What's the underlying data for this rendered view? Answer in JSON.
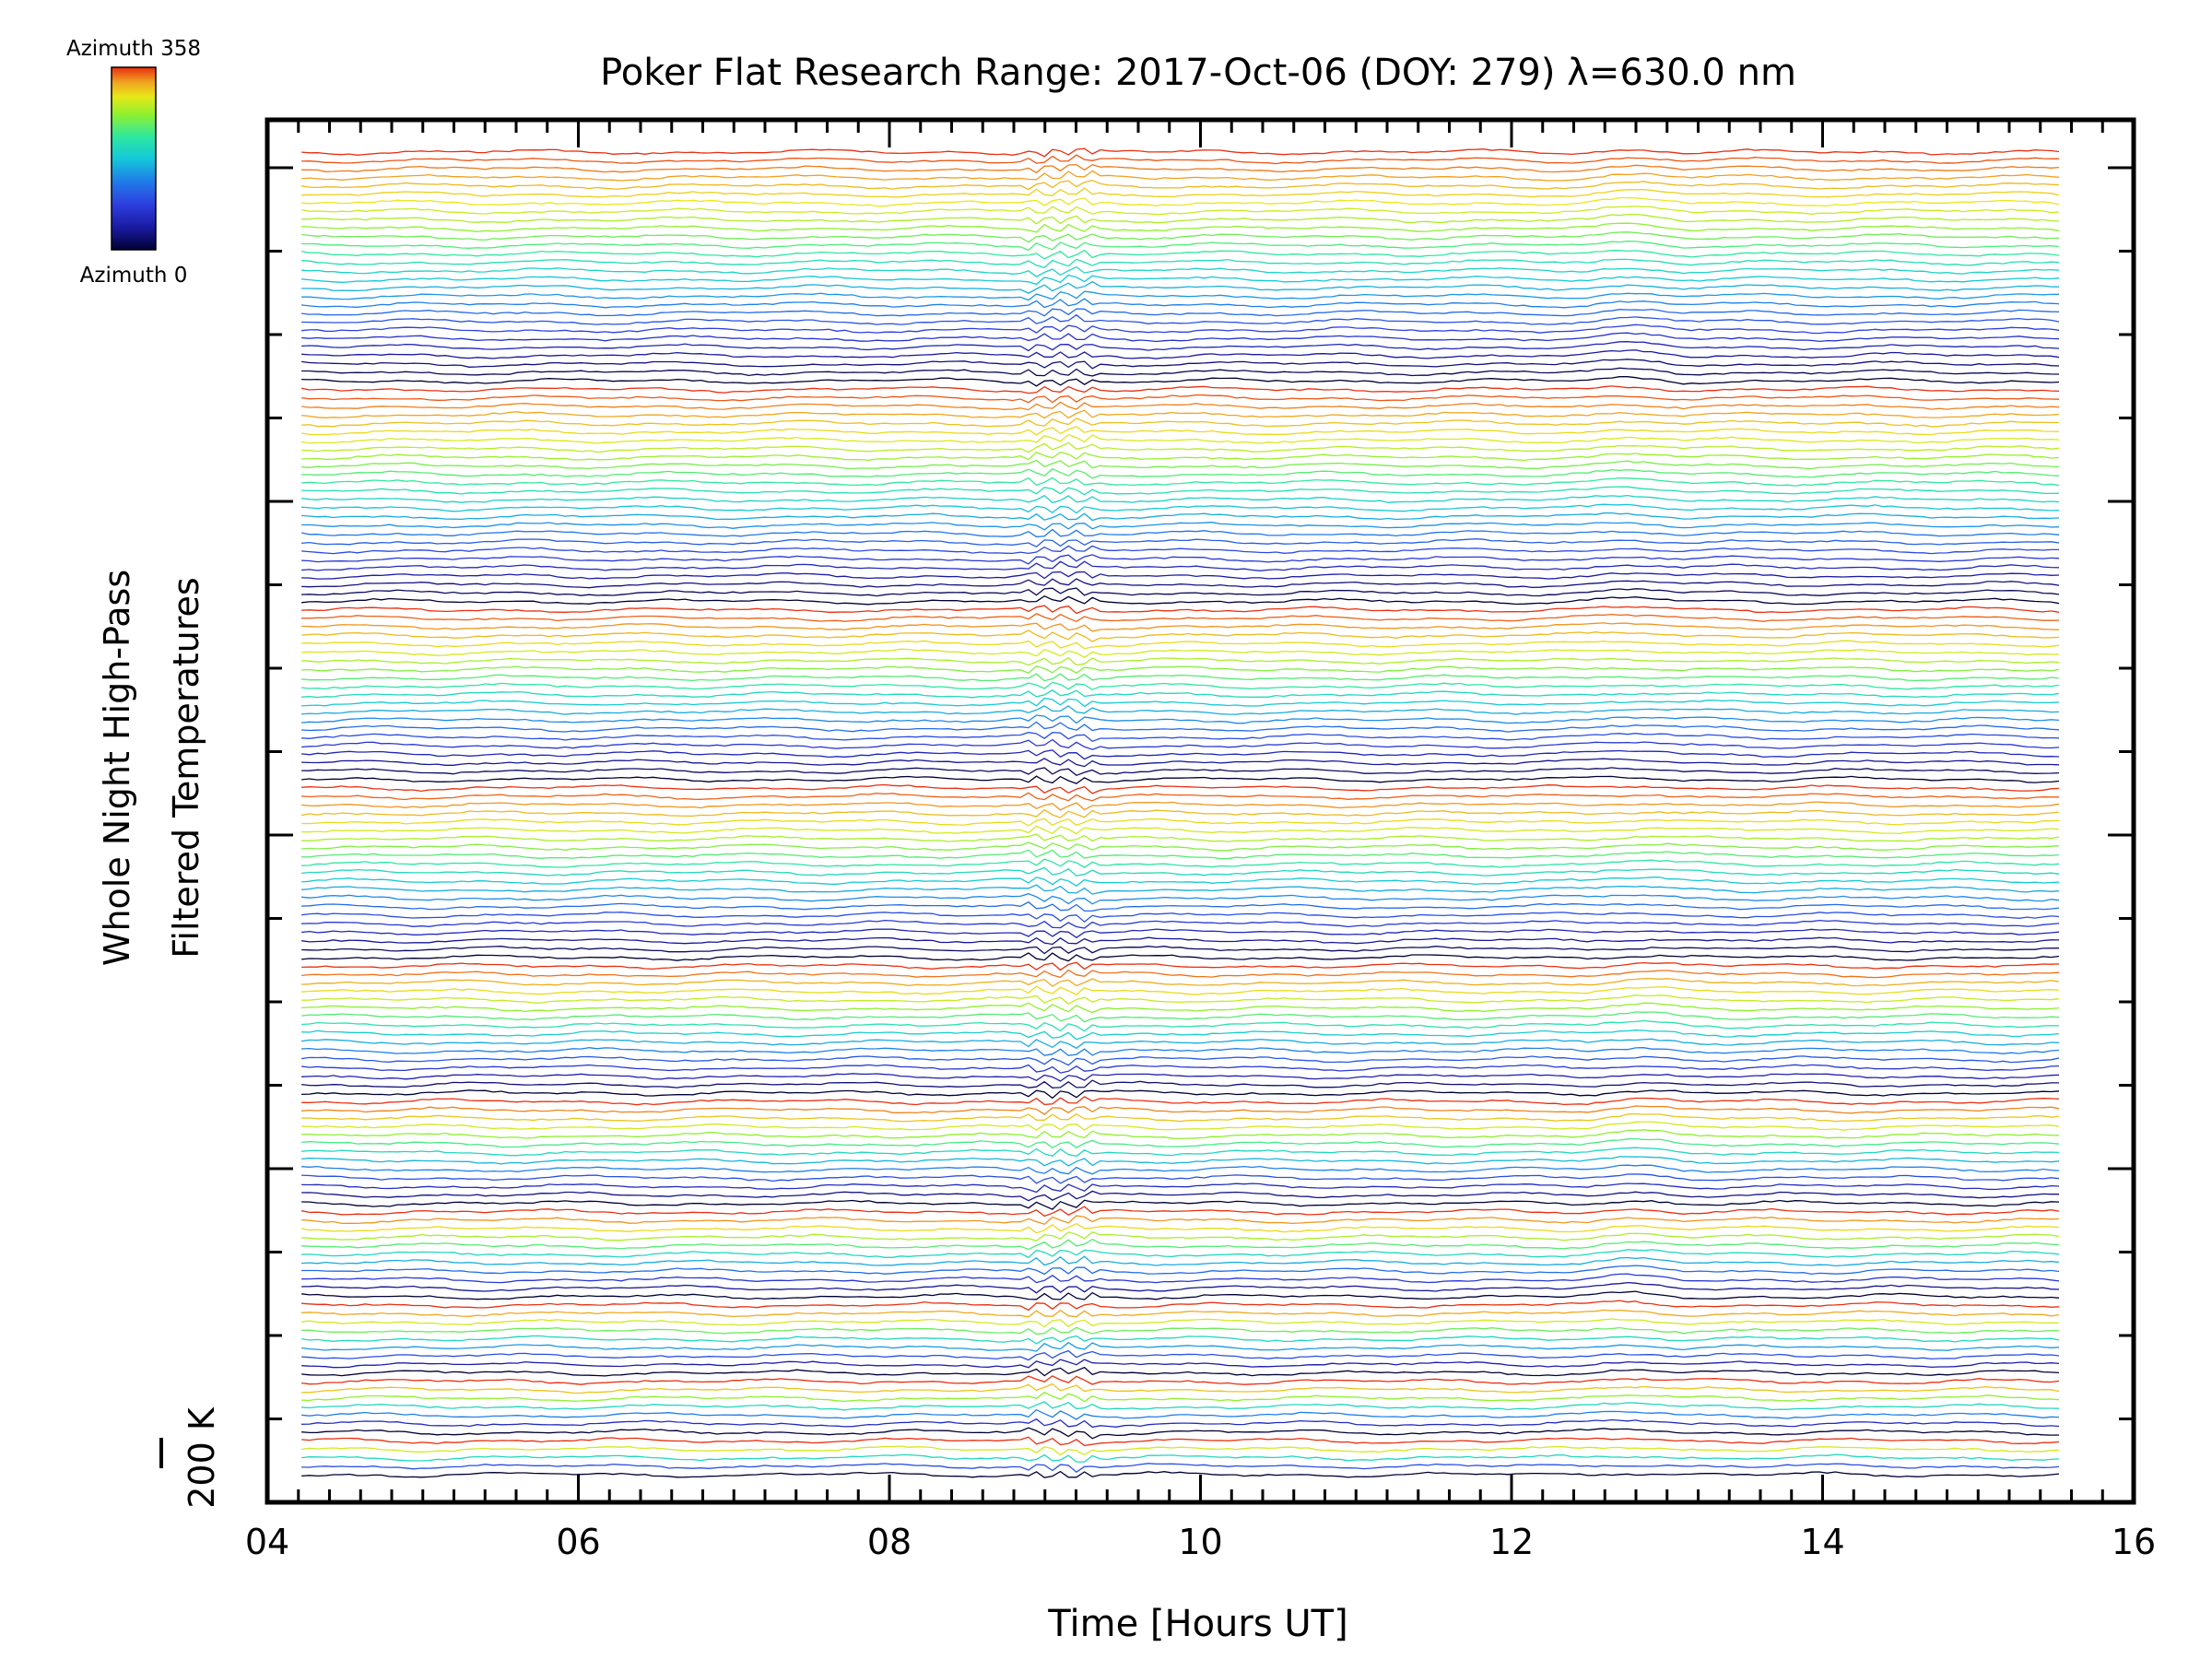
{
  "colorbar": {
    "top_label": "Azimuth 358",
    "bottom_label": "Azimuth 0",
    "colors": [
      "#000033",
      "#1a1aa0",
      "#2d3fe0",
      "#1f7fe8",
      "#14c8d8",
      "#2ee8a0",
      "#8ef030",
      "#e8e818",
      "#f0a020",
      "#e83010"
    ]
  },
  "chart_data": {
    "type": "line",
    "title": "Poker Flat Research Range: 2017-Oct-06 (DOY: 279) λ=630.0 nm",
    "xlabel": "Time [Hours UT]",
    "ylabel_line1": "Whole Night High-Pass",
    "ylabel_line2": "Filtered Temperatures",
    "scale_label": "200 K",
    "xlim": [
      4,
      16
    ],
    "x_ticks": [
      "04",
      "06",
      "08",
      "10",
      "12",
      "14",
      "16"
    ],
    "x_tick_values": [
      4,
      6,
      8,
      10,
      12,
      14,
      16
    ],
    "x_range_data": [
      4.22,
      15.52
    ],
    "series_groups": [
      {
        "azimuth_range": [
          0,
          358
        ],
        "traces": 28
      },
      {
        "azimuth_range": [
          0,
          358
        ],
        "traces": 26
      },
      {
        "azimuth_range": [
          0,
          358
        ],
        "traces": 21
      },
      {
        "azimuth_range": [
          0,
          358
        ],
        "traces": 21
      },
      {
        "azimuth_range": [
          0,
          358
        ],
        "traces": 16
      },
      {
        "azimuth_range": [
          0,
          358
        ],
        "traces": 13
      },
      {
        "azimuth_range": [
          0,
          358
        ],
        "traces": 11
      },
      {
        "azimuth_range": [
          0,
          358
        ],
        "traces": 9
      },
      {
        "azimuth_range": [
          0,
          358
        ],
        "traces": 7
      },
      {
        "azimuth_range": [
          0,
          358
        ],
        "traces": 5
      }
    ],
    "grid": false
  }
}
